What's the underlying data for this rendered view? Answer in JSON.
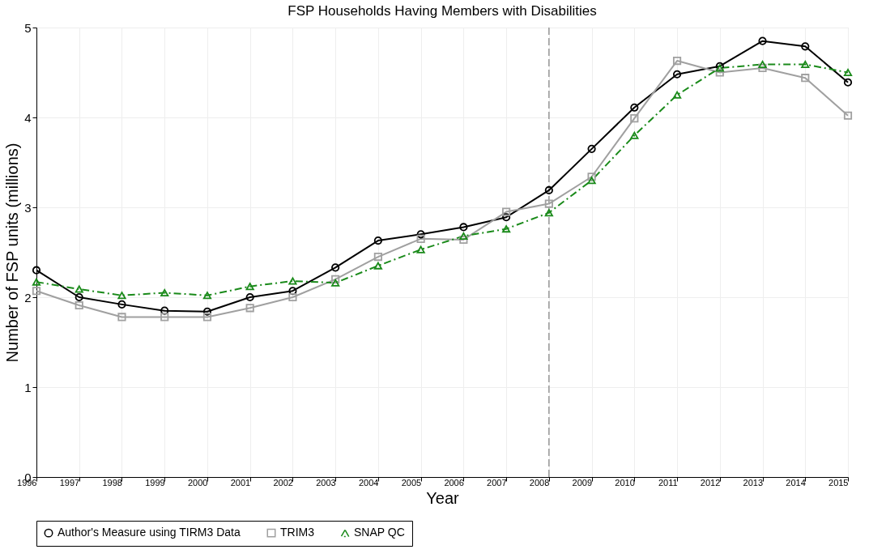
{
  "chart_data": {
    "type": "line",
    "title": "FSP Households Having Members with Disabilities",
    "xlabel": "Year",
    "ylabel": "Number of FSP units (millions)",
    "categories": [
      "1996",
      "1997",
      "1998",
      "1999",
      "2000",
      "2001",
      "2002",
      "2003",
      "2004",
      "2005",
      "2006",
      "2007",
      "2008",
      "2009",
      "2010",
      "2011",
      "2012",
      "2013",
      "2014",
      "2015"
    ],
    "series": [
      {
        "name": "Author's Measure using TIRM3 Data",
        "color": "#000000",
        "marker": "circle",
        "line_style": "solid",
        "values": [
          2.3,
          2.0,
          1.92,
          1.85,
          1.84,
          2.0,
          2.07,
          2.33,
          2.63,
          2.7,
          2.78,
          2.89,
          3.19,
          3.65,
          4.11,
          4.48,
          4.57,
          4.85,
          4.79,
          4.39
        ]
      },
      {
        "name": "TRIM3",
        "color": "#a0a0a0",
        "marker": "square",
        "line_style": "solid",
        "values": [
          2.07,
          1.91,
          1.78,
          1.78,
          1.78,
          1.88,
          2.0,
          2.2,
          2.45,
          2.65,
          2.64,
          2.95,
          3.04,
          3.34,
          3.99,
          4.63,
          4.5,
          4.55,
          4.44,
          4.02
        ]
      },
      {
        "name": "SNAP QC",
        "color": "#1a8a1a",
        "marker": "triangle",
        "line_style": "dashed",
        "values": [
          2.17,
          2.09,
          2.02,
          2.05,
          2.02,
          2.12,
          2.18,
          2.16,
          2.35,
          2.53,
          2.68,
          2.76,
          2.94,
          3.3,
          3.8,
          4.25,
          4.55,
          4.59,
          4.59,
          4.5
        ]
      }
    ],
    "ylim": [
      0,
      5
    ],
    "yticks": [
      0,
      1,
      2,
      3,
      4,
      5
    ],
    "grid": true,
    "legend": "bottom",
    "ref_lines": [
      {
        "axis": "x",
        "value": "2008",
        "color": "#808080",
        "line_style": "dashed"
      }
    ]
  }
}
